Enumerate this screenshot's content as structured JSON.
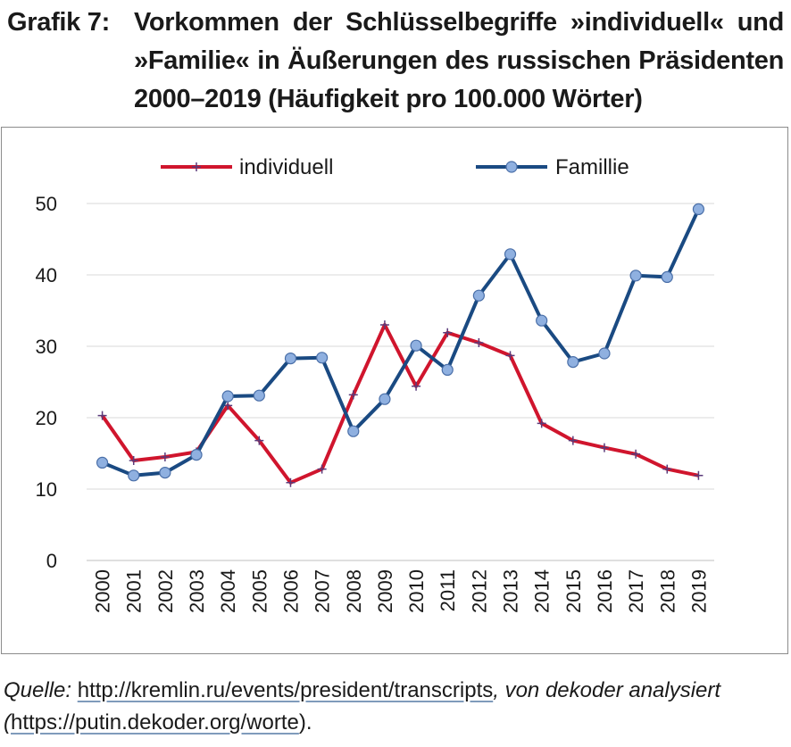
{
  "figure": {
    "label": "Grafik 7:",
    "title": "Vorkommen der Schlüsselbegriffe »individuell« und »Familie« in Äußerungen des russischen Präsidenten 2000–2019 (Häufigkeit pro 100.000 Wörter)"
  },
  "source": {
    "label": "Quelle:",
    "url1": "http://kremlin.ru/events/president/transcripts",
    "middle": ", von dekoder analysiert (",
    "url2": "https://putin.dekoder.org/worte",
    "end": ")."
  },
  "colors": {
    "individuell": "#d0152d",
    "familie": "#1a4a82",
    "marker_fill": "#8fb0e0",
    "grid": "#d9d9d9"
  },
  "chart_data": {
    "type": "line",
    "categories": [
      "2000",
      "2001",
      "2002",
      "2003",
      "2004",
      "2005",
      "2006",
      "2007",
      "2008",
      "2009",
      "2010",
      "2011",
      "2012",
      "2013",
      "2014",
      "2015",
      "2016",
      "2017",
      "2018",
      "2019"
    ],
    "series": [
      {
        "name": "individuell",
        "marker": "plus",
        "values": [
          20.3,
          14.0,
          14.5,
          15.2,
          21.7,
          16.8,
          10.9,
          12.8,
          23.2,
          33.0,
          24.4,
          31.9,
          30.5,
          28.7,
          19.2,
          16.8,
          15.8,
          14.9,
          12.8,
          11.9
        ]
      },
      {
        "name": "Famillie",
        "marker": "circle",
        "values": [
          13.7,
          11.9,
          12.3,
          14.8,
          23.0,
          23.1,
          28.3,
          28.4,
          18.1,
          22.6,
          30.1,
          26.7,
          37.1,
          42.9,
          33.6,
          27.8,
          29.0,
          39.9,
          39.7,
          49.2
        ]
      }
    ],
    "ylim": [
      0,
      50
    ],
    "yticks": [
      "0",
      "10",
      "20",
      "30",
      "40",
      "50"
    ],
    "grid": true,
    "legend": "top-center"
  }
}
